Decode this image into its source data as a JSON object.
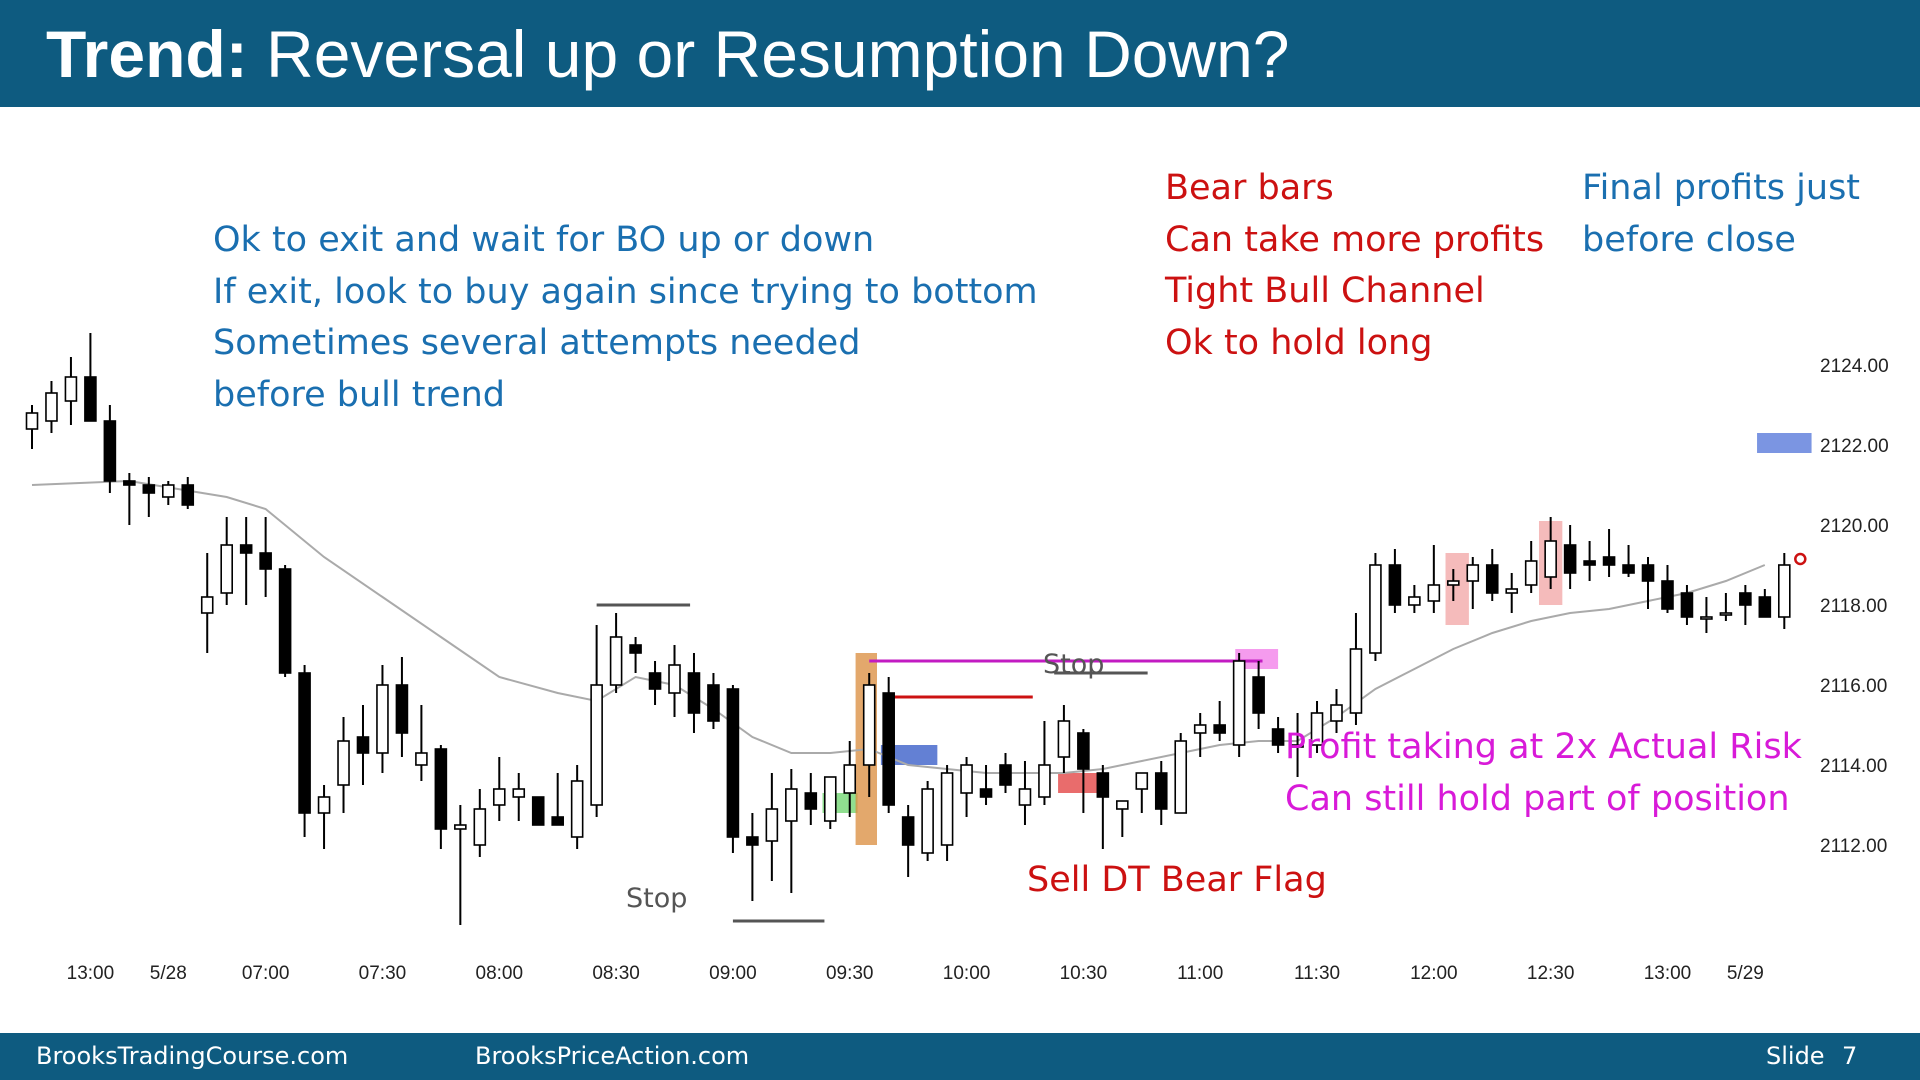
{
  "slide": {
    "title_bold": "Trend:",
    "title_rest": " Reversal up or Resumption Down?",
    "footer": {
      "site1": "BrooksTradingCourse.com",
      "site2": "BrooksPriceAction.com",
      "slide_label": "Slide",
      "slide_number": "7"
    }
  },
  "colors": {
    "header_bg": "#0e5b80",
    "blue_text": "#1a6fb0",
    "red_text": "#cc1111",
    "magenta_text": "#d81ad8",
    "ema_line": "#aaaaaa"
  },
  "chart_data": {
    "type": "candlestick",
    "title": "",
    "xlabel": "",
    "ylabel": "",
    "ylim": [
      2109.5,
      2127.0
    ],
    "yticks": [
      "2124.00",
      "2122.00",
      "2120.00",
      "2118.00",
      "2116.00",
      "2114.00",
      "2112.00"
    ],
    "xticks": [
      {
        "label": "13:00",
        "bar": 3
      },
      {
        "label": "5/28",
        "bar": 7
      },
      {
        "label": "07:00",
        "bar": 12
      },
      {
        "label": "07:30",
        "bar": 18
      },
      {
        "label": "08:00",
        "bar": 24
      },
      {
        "label": "08:30",
        "bar": 30
      },
      {
        "label": "09:00",
        "bar": 36
      },
      {
        "label": "09:30",
        "bar": 42
      },
      {
        "label": "10:00",
        "bar": 48
      },
      {
        "label": "10:30",
        "bar": 54
      },
      {
        "label": "11:00",
        "bar": 60
      },
      {
        "label": "11:30",
        "bar": 66
      },
      {
        "label": "12:00",
        "bar": 72
      },
      {
        "label": "12:30",
        "bar": 78
      },
      {
        "label": "13:00",
        "bar": 84
      },
      {
        "label": "5/29",
        "bar": 88
      }
    ],
    "bars": [
      {
        "o": 2122.4,
        "h": 2123.0,
        "l": 2121.9,
        "c": 2122.8
      },
      {
        "o": 2122.6,
        "h": 2123.6,
        "l": 2122.3,
        "c": 2123.3
      },
      {
        "o": 2123.1,
        "h": 2124.2,
        "l": 2122.5,
        "c": 2123.7
      },
      {
        "o": 2123.7,
        "h": 2124.8,
        "l": 2122.6,
        "c": 2122.6
      },
      {
        "o": 2122.6,
        "h": 2123.0,
        "l": 2120.8,
        "c": 2121.1
      },
      {
        "o": 2121.1,
        "h": 2121.3,
        "l": 2120.0,
        "c": 2121.0
      },
      {
        "o": 2121.0,
        "h": 2121.2,
        "l": 2120.2,
        "c": 2120.8
      },
      {
        "o": 2120.7,
        "h": 2121.1,
        "l": 2120.5,
        "c": 2121.0
      },
      {
        "o": 2121.0,
        "h": 2121.2,
        "l": 2120.4,
        "c": 2120.5
      },
      {
        "o": 2117.8,
        "h": 2119.3,
        "l": 2116.8,
        "c": 2118.2
      },
      {
        "o": 2118.3,
        "h": 2120.2,
        "l": 2118.0,
        "c": 2119.5
      },
      {
        "o": 2119.5,
        "h": 2120.2,
        "l": 2118.0,
        "c": 2119.3
      },
      {
        "o": 2119.3,
        "h": 2120.2,
        "l": 2118.2,
        "c": 2118.9
      },
      {
        "o": 2118.9,
        "h": 2119.0,
        "l": 2116.2,
        "c": 2116.3
      },
      {
        "o": 2116.3,
        "h": 2116.5,
        "l": 2112.2,
        "c": 2112.8
      },
      {
        "o": 2112.8,
        "h": 2113.5,
        "l": 2111.9,
        "c": 2113.2
      },
      {
        "o": 2113.5,
        "h": 2115.2,
        "l": 2112.8,
        "c": 2114.6
      },
      {
        "o": 2114.7,
        "h": 2115.5,
        "l": 2113.5,
        "c": 2114.3
      },
      {
        "o": 2114.3,
        "h": 2116.5,
        "l": 2113.8,
        "c": 2116.0
      },
      {
        "o": 2116.0,
        "h": 2116.7,
        "l": 2114.2,
        "c": 2114.8
      },
      {
        "o": 2114.0,
        "h": 2115.5,
        "l": 2113.6,
        "c": 2114.3
      },
      {
        "o": 2114.4,
        "h": 2114.5,
        "l": 2111.9,
        "c": 2112.4
      },
      {
        "o": 2112.4,
        "h": 2113.0,
        "l": 2110.0,
        "c": 2112.5
      },
      {
        "o": 2112.0,
        "h": 2113.4,
        "l": 2111.7,
        "c": 2112.9
      },
      {
        "o": 2113.0,
        "h": 2114.2,
        "l": 2112.6,
        "c": 2113.4
      },
      {
        "o": 2113.2,
        "h": 2113.8,
        "l": 2112.6,
        "c": 2113.4
      },
      {
        "o": 2113.2,
        "h": 2113.2,
        "l": 2112.5,
        "c": 2112.5
      },
      {
        "o": 2112.7,
        "h": 2113.8,
        "l": 2112.5,
        "c": 2112.5
      },
      {
        "o": 2112.2,
        "h": 2114.0,
        "l": 2111.9,
        "c": 2113.6
      },
      {
        "o": 2113.0,
        "h": 2117.5,
        "l": 2112.7,
        "c": 2116.0
      },
      {
        "o": 2116.0,
        "h": 2117.8,
        "l": 2115.8,
        "c": 2117.2
      },
      {
        "o": 2117.0,
        "h": 2117.2,
        "l": 2116.3,
        "c": 2116.8
      },
      {
        "o": 2116.3,
        "h": 2116.6,
        "l": 2115.5,
        "c": 2115.9
      },
      {
        "o": 2115.8,
        "h": 2117.0,
        "l": 2115.2,
        "c": 2116.5
      },
      {
        "o": 2116.3,
        "h": 2116.8,
        "l": 2114.8,
        "c": 2115.3
      },
      {
        "o": 2116.0,
        "h": 2116.3,
        "l": 2114.9,
        "c": 2115.1
      },
      {
        "o": 2115.9,
        "h": 2116.0,
        "l": 2111.8,
        "c": 2112.2
      },
      {
        "o": 2112.2,
        "h": 2112.8,
        "l": 2110.6,
        "c": 2112.0
      },
      {
        "o": 2112.1,
        "h": 2113.8,
        "l": 2111.1,
        "c": 2112.9
      },
      {
        "o": 2112.6,
        "h": 2113.9,
        "l": 2110.8,
        "c": 2113.4
      },
      {
        "o": 2113.3,
        "h": 2113.8,
        "l": 2112.5,
        "c": 2112.9
      },
      {
        "o": 2112.6,
        "h": 2113.7,
        "l": 2112.4,
        "c": 2113.7
      },
      {
        "o": 2113.3,
        "h": 2114.6,
        "l": 2112.7,
        "c": 2114.0
      },
      {
        "o": 2114.0,
        "h": 2116.3,
        "l": 2113.2,
        "c": 2116.0
      },
      {
        "o": 2115.8,
        "h": 2116.2,
        "l": 2112.8,
        "c": 2113.0
      },
      {
        "o": 2112.7,
        "h": 2113.0,
        "l": 2111.2,
        "c": 2112.0
      },
      {
        "o": 2111.8,
        "h": 2113.6,
        "l": 2111.6,
        "c": 2113.4
      },
      {
        "o": 2112.0,
        "h": 2114.0,
        "l": 2111.6,
        "c": 2113.8
      },
      {
        "o": 2113.3,
        "h": 2114.2,
        "l": 2112.7,
        "c": 2114.0
      },
      {
        "o": 2113.4,
        "h": 2114.0,
        "l": 2113.0,
        "c": 2113.2
      },
      {
        "o": 2114.0,
        "h": 2114.3,
        "l": 2113.3,
        "c": 2113.5
      },
      {
        "o": 2113.0,
        "h": 2114.1,
        "l": 2112.5,
        "c": 2113.4
      },
      {
        "o": 2113.2,
        "h": 2115.1,
        "l": 2113.0,
        "c": 2114.0
      },
      {
        "o": 2114.2,
        "h": 2115.5,
        "l": 2113.8,
        "c": 2115.1
      },
      {
        "o": 2114.8,
        "h": 2114.9,
        "l": 2112.8,
        "c": 2113.9
      },
      {
        "o": 2113.8,
        "h": 2114.0,
        "l": 2111.9,
        "c": 2113.2
      },
      {
        "o": 2112.9,
        "h": 2113.1,
        "l": 2112.2,
        "c": 2113.1
      },
      {
        "o": 2113.4,
        "h": 2113.8,
        "l": 2112.8,
        "c": 2113.8
      },
      {
        "o": 2113.8,
        "h": 2114.1,
        "l": 2112.5,
        "c": 2112.9
      },
      {
        "o": 2112.8,
        "h": 2114.8,
        "l": 2112.8,
        "c": 2114.6
      },
      {
        "o": 2114.8,
        "h": 2115.3,
        "l": 2114.2,
        "c": 2115.0
      },
      {
        "o": 2115.0,
        "h": 2115.6,
        "l": 2114.6,
        "c": 2114.8
      },
      {
        "o": 2114.5,
        "h": 2116.8,
        "l": 2114.2,
        "c": 2116.6
      },
      {
        "o": 2116.2,
        "h": 2116.6,
        "l": 2114.9,
        "c": 2115.3
      },
      {
        "o": 2114.9,
        "h": 2115.2,
        "l": 2114.3,
        "c": 2114.5
      },
      {
        "o": 2114.5,
        "h": 2115.3,
        "l": 2113.7,
        "c": 2114.5
      },
      {
        "o": 2114.5,
        "h": 2115.6,
        "l": 2114.3,
        "c": 2115.3
      },
      {
        "o": 2115.1,
        "h": 2115.9,
        "l": 2114.8,
        "c": 2115.5
      },
      {
        "o": 2115.3,
        "h": 2117.8,
        "l": 2115.0,
        "c": 2116.9
      },
      {
        "o": 2116.8,
        "h": 2119.3,
        "l": 2116.6,
        "c": 2119.0
      },
      {
        "o": 2119.0,
        "h": 2119.4,
        "l": 2117.8,
        "c": 2118.0
      },
      {
        "o": 2118.0,
        "h": 2118.5,
        "l": 2117.8,
        "c": 2118.2
      },
      {
        "o": 2118.1,
        "h": 2119.5,
        "l": 2117.8,
        "c": 2118.5
      },
      {
        "o": 2118.5,
        "h": 2118.9,
        "l": 2118.1,
        "c": 2118.6
      },
      {
        "o": 2118.6,
        "h": 2119.2,
        "l": 2117.9,
        "c": 2119.0
      },
      {
        "o": 2119.0,
        "h": 2119.4,
        "l": 2118.1,
        "c": 2118.3
      },
      {
        "o": 2118.3,
        "h": 2118.8,
        "l": 2117.8,
        "c": 2118.4
      },
      {
        "o": 2118.5,
        "h": 2119.6,
        "l": 2118.3,
        "c": 2119.1
      },
      {
        "o": 2118.7,
        "h": 2120.2,
        "l": 2118.4,
        "c": 2119.6
      },
      {
        "o": 2119.5,
        "h": 2120.0,
        "l": 2118.4,
        "c": 2118.8
      },
      {
        "o": 2119.1,
        "h": 2119.6,
        "l": 2118.6,
        "c": 2119.0
      },
      {
        "o": 2119.2,
        "h": 2119.9,
        "l": 2118.7,
        "c": 2119.0
      },
      {
        "o": 2119.0,
        "h": 2119.5,
        "l": 2118.7,
        "c": 2118.8
      },
      {
        "o": 2119.0,
        "h": 2119.2,
        "l": 2117.9,
        "c": 2118.6
      },
      {
        "o": 2118.6,
        "h": 2119.0,
        "l": 2117.8,
        "c": 2117.9
      },
      {
        "o": 2118.3,
        "h": 2118.5,
        "l": 2117.5,
        "c": 2117.7
      },
      {
        "o": 2117.7,
        "h": 2118.2,
        "l": 2117.3,
        "c": 2117.7
      },
      {
        "o": 2117.8,
        "h": 2118.3,
        "l": 2117.6,
        "c": 2117.8
      },
      {
        "o": 2118.3,
        "h": 2118.5,
        "l": 2117.5,
        "c": 2118.0
      },
      {
        "o": 2118.2,
        "h": 2118.4,
        "l": 2117.7,
        "c": 2117.7
      },
      {
        "o": 2117.7,
        "h": 2119.3,
        "l": 2117.4,
        "c": 2119.0
      }
    ],
    "ema": [
      [
        0,
        2121.0
      ],
      [
        5,
        2121.1
      ],
      [
        10,
        2120.7
      ],
      [
        12,
        2120.4
      ],
      [
        15,
        2119.2
      ],
      [
        18,
        2118.2
      ],
      [
        21,
        2117.2
      ],
      [
        24,
        2116.2
      ],
      [
        27,
        2115.8
      ],
      [
        29,
        2115.6
      ],
      [
        31,
        2116.2
      ],
      [
        33,
        2116.0
      ],
      [
        35,
        2115.4
      ],
      [
        37,
        2114.7
      ],
      [
        39,
        2114.3
      ],
      [
        41,
        2114.3
      ],
      [
        43,
        2114.4
      ],
      [
        45,
        2114.0
      ],
      [
        47,
        2113.9
      ],
      [
        49,
        2113.8
      ],
      [
        51,
        2113.8
      ],
      [
        53,
        2113.8
      ],
      [
        55,
        2113.9
      ],
      [
        57,
        2114.1
      ],
      [
        59,
        2114.3
      ],
      [
        61,
        2114.5
      ],
      [
        63,
        2114.6
      ],
      [
        65,
        2114.6
      ],
      [
        67,
        2115.2
      ],
      [
        69,
        2115.9
      ],
      [
        71,
        2116.4
      ],
      [
        73,
        2116.9
      ],
      [
        75,
        2117.3
      ],
      [
        77,
        2117.6
      ],
      [
        79,
        2117.8
      ],
      [
        81,
        2117.9
      ],
      [
        83,
        2118.1
      ],
      [
        85,
        2118.3
      ],
      [
        87,
        2118.6
      ],
      [
        89,
        2119.0
      ]
    ],
    "annotations": {
      "blue_lines": [
        "Ok to exit and wait for BO up or down",
        "If exit, look to buy again since trying to bottom",
        "Sometimes several attempts needed",
        "before bull trend"
      ],
      "red_lines": [
        "Bear bars",
        "Can take more profits",
        "Tight Bull Channel",
        "Ok to hold long"
      ],
      "final_lines": [
        "Final profits just",
        "before close"
      ],
      "magenta_lines": [
        "Profit taking at 2x Actual Risk",
        "Can still hold part of position"
      ],
      "sell_label": "Sell DT Bear Flag",
      "stop_labels": [
        "Stop",
        "Stop"
      ]
    },
    "highlights": [
      {
        "bar_from": 40.6,
        "bar_to": 42.4,
        "y_from": 2113.3,
        "y_to": 2112.8,
        "color": "#6bd46b"
      },
      {
        "bar_from": 42.3,
        "bar_to": 43.4,
        "y_from": 2116.8,
        "y_to": 2112.0,
        "color": "#d98b3b"
      },
      {
        "bar_from": 43.6,
        "bar_to": 46.5,
        "y_from": 2114.5,
        "y_to": 2114.0,
        "color": "#2f56c6"
      },
      {
        "bar_from": 52.7,
        "bar_to": 55.1,
        "y_from": 2113.8,
        "y_to": 2113.3,
        "color": "#e13b3b"
      },
      {
        "bar_from": 61.8,
        "bar_to": 64.0,
        "y_from": 2116.9,
        "y_to": 2116.4,
        "color": "#f27ae8"
      },
      {
        "bar_from": 72.6,
        "bar_to": 73.8,
        "y_from": 2119.3,
        "y_to": 2117.5,
        "color": "#f2a4a4"
      },
      {
        "bar_from": 77.4,
        "bar_to": 78.6,
        "y_from": 2120.1,
        "y_to": 2118.0,
        "color": "#f2a4a4"
      },
      {
        "bar_from": 88.6,
        "bar_to": 91.4,
        "y_from": 2122.3,
        "y_to": 2121.8,
        "color": "#4f71d8"
      }
    ],
    "level_lines": [
      {
        "bar_from": 29.0,
        "bar_to": 33.8,
        "y": 2118.0,
        "color": "#555555"
      },
      {
        "bar_from": 36.0,
        "bar_to": 40.7,
        "y": 2110.1,
        "color": "#555555"
      },
      {
        "bar_from": 52.5,
        "bar_to": 57.3,
        "y": 2116.3,
        "color": "#555555"
      },
      {
        "bar_from": 43.0,
        "bar_to": 63.2,
        "y": 2116.6,
        "color": "#c21bc2"
      },
      {
        "bar_from": 44.0,
        "bar_to": 51.4,
        "y": 2115.7,
        "color": "#cc1111"
      }
    ]
  }
}
